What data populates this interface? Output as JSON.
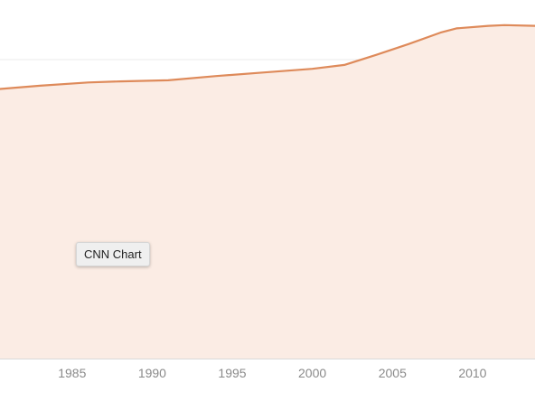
{
  "tooltip": {
    "text": "CNN Chart"
  },
  "colors": {
    "line": "#de8a5a",
    "area": "#fbece4",
    "grid": "#ebebeb",
    "tick_text": "#8a8a8a"
  },
  "chart_data": {
    "type": "area",
    "title": "",
    "xlabel": "",
    "ylabel": "",
    "x_ticks": [
      1985,
      1990,
      1995,
      2000,
      2005,
      2010
    ],
    "xlim": [
      1980.5,
      2013.9
    ],
    "ylim": [
      0,
      100
    ],
    "grid": true,
    "legend": "none",
    "series": [
      {
        "x": [
          1980.5,
          1983,
          1986,
          1988,
          1991,
          1994,
          1997,
          2000,
          2002,
          2004,
          2006,
          2008,
          2009,
          2011,
          2012,
          2013.9
        ],
        "y": [
          75.2,
          76.1,
          77.0,
          77.3,
          77.6,
          78.8,
          79.8,
          80.8,
          81.9,
          84.7,
          87.7,
          90.9,
          92.1,
          92.8,
          93.0,
          92.8
        ]
      }
    ]
  }
}
